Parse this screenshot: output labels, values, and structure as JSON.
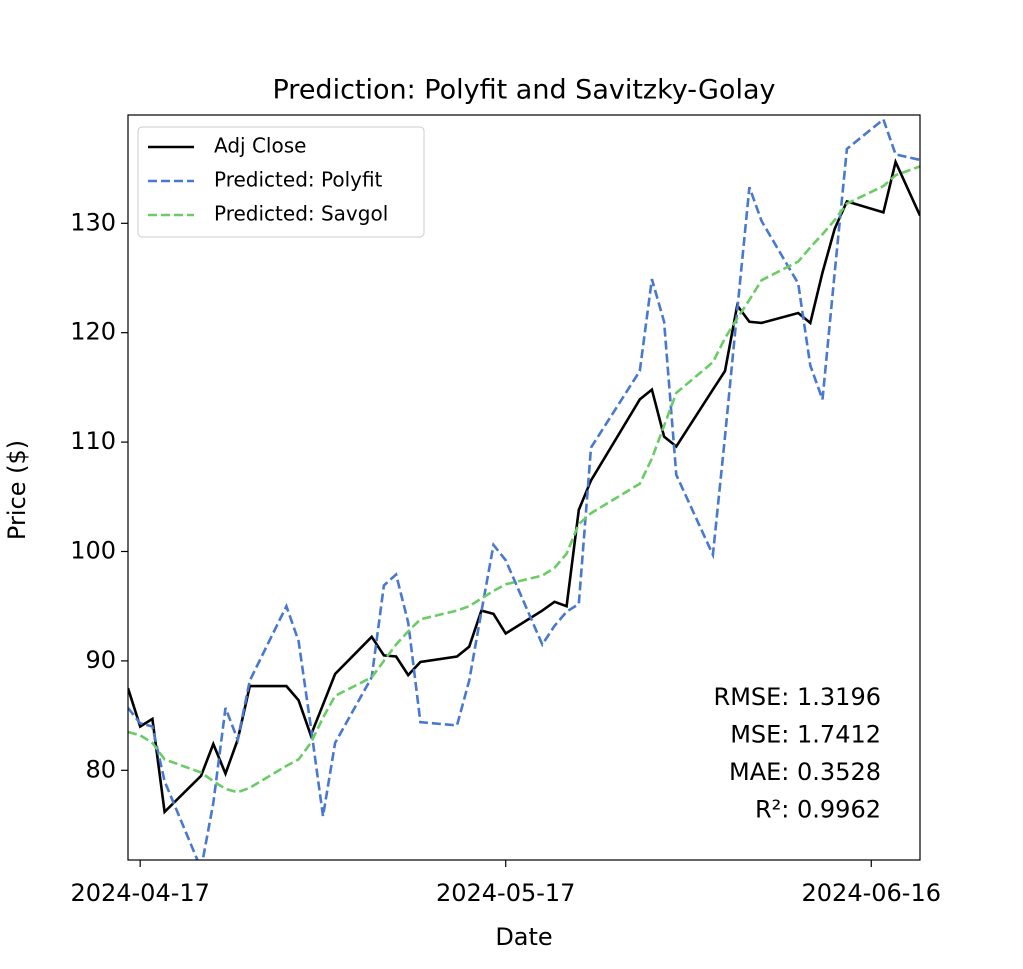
{
  "chart_data": {
    "type": "line",
    "title": "Prediction: Polyfit and Savitzky-Golay",
    "x_label": "Date",
    "y_label": "Price ($)",
    "x": [
      "2024-04-16",
      "2024-04-17",
      "2024-04-18",
      "2024-04-19",
      "2024-04-22",
      "2024-04-23",
      "2024-04-24",
      "2024-04-25",
      "2024-04-26",
      "2024-04-29",
      "2024-04-30",
      "2024-05-01",
      "2024-05-02",
      "2024-05-03",
      "2024-05-06",
      "2024-05-07",
      "2024-05-08",
      "2024-05-09",
      "2024-05-10",
      "2024-05-13",
      "2024-05-14",
      "2024-05-15",
      "2024-05-16",
      "2024-05-17",
      "2024-05-20",
      "2024-05-21",
      "2024-05-22",
      "2024-05-23",
      "2024-05-24",
      "2024-05-28",
      "2024-05-29",
      "2024-05-30",
      "2024-05-31",
      "2024-06-03",
      "2024-06-04",
      "2024-06-05",
      "2024-06-06",
      "2024-06-07",
      "2024-06-10",
      "2024-06-11",
      "2024-06-12",
      "2024-06-13",
      "2024-06-14",
      "2024-06-17",
      "2024-06-18",
      "2024-06-20"
    ],
    "series": [
      {
        "name": "Adj Close",
        "color": "#000000",
        "dash": "solid",
        "values": [
          87.5,
          84,
          84.7,
          76.2,
          79.5,
          82.4,
          79.7,
          82.8,
          87.7,
          87.7,
          86.4,
          83.2,
          86.0,
          88.8,
          92.2,
          90.5,
          90.4,
          88.7,
          89.9,
          90.4,
          91.3,
          94.6,
          94.3,
          92.5,
          94.6,
          95.4,
          95.0,
          103.8,
          106.5,
          113.9,
          114.8,
          110.5,
          109.6,
          114.8,
          116.5,
          122.5,
          121.0,
          120.9,
          121.8,
          120.9,
          125.5,
          129.5,
          132.0,
          131.0,
          135.6,
          130.7
        ]
      },
      {
        "name": "Predicted: Polyfit",
        "color": "#4878cf",
        "dash": "dashed",
        "values": [
          85.7,
          84.3,
          84.0,
          79.0,
          71.0,
          77.0,
          85.7,
          82.8,
          88.2,
          95.0,
          91.8,
          84.0,
          75.8,
          82.5,
          88.5,
          96.9,
          97.9,
          93.5,
          84.4,
          84.1,
          88.2,
          94.5,
          100.6,
          99.2,
          91.5,
          93.2,
          94.5,
          95.2,
          109.5,
          116.5,
          124.9,
          121.0,
          107.0,
          99.7,
          110.5,
          122.0,
          133.3,
          130.2,
          124.5,
          117.0,
          113.9,
          125.5,
          136.8,
          139.5,
          136.3,
          135.8
        ]
      },
      {
        "name": "Predicted: Savgol",
        "color": "#6acc65",
        "dash": "dashed",
        "values": [
          83.5,
          83.2,
          82.5,
          81.0,
          79.8,
          79.0,
          78.3,
          78.0,
          78.4,
          80.4,
          81.0,
          82.5,
          84.8,
          86.8,
          88.5,
          90.0,
          91.5,
          92.7,
          93.8,
          94.6,
          95.0,
          95.7,
          96.4,
          97.0,
          97.8,
          98.5,
          99.8,
          102.5,
          103.5,
          106.2,
          108.5,
          111.5,
          114.5,
          117.3,
          119.5,
          121.3,
          123.0,
          124.8,
          126.5,
          127.8,
          129.0,
          130.3,
          131.8,
          133.4,
          134.4,
          135.2
        ]
      }
    ],
    "xlim": [
      "2024-04-16",
      "2024-06-20"
    ],
    "xticks": [
      "2024-04-17",
      "2024-05-17",
      "2024-06-16"
    ],
    "ylim": [
      71.8,
      139.9
    ],
    "yticks": [
      80,
      90,
      100,
      110,
      120,
      130
    ],
    "legend": "upper left",
    "annotations": [
      "RMSE: 1.3196",
      "MSE: 1.7412",
      "MAE: 0.3528",
      "R²: 0.9962"
    ]
  }
}
